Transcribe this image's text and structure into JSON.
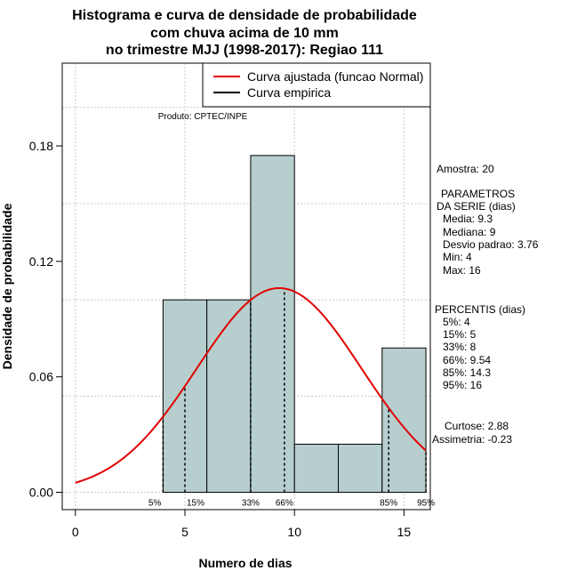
{
  "chart_data": {
    "type": "bar",
    "title_lines": [
      "Histograma e curva de densidade de probabilidade",
      "com chuva acima de 10 mm",
      "no trimestre MJJ (1998-2017): Regiao 111"
    ],
    "xlabel": "Numero de dias",
    "ylabel": "Densidade de probabilidade",
    "xlim": [
      -0.6,
      16.2
    ],
    "ylim": [
      -0.009,
      0.223
    ],
    "xticks": [
      0,
      5,
      10,
      15
    ],
    "yticks": [
      0.0,
      0.06,
      0.12,
      0.18
    ],
    "ytick_labels": [
      "0.00",
      "0.06",
      "0.12",
      "0.18"
    ],
    "grid": true,
    "bins": [
      {
        "x0": 4,
        "x1": 6,
        "density": 0.1
      },
      {
        "x0": 6,
        "x1": 8,
        "density": 0.1
      },
      {
        "x0": 8,
        "x1": 10,
        "density": 0.175
      },
      {
        "x0": 10,
        "x1": 12,
        "density": 0.025
      },
      {
        "x0": 12,
        "x1": 14,
        "density": 0.025
      },
      {
        "x0": 14,
        "x1": 16,
        "density": 0.075
      }
    ],
    "fitted_curve": {
      "name": "Curva ajustada (funcao Normal)",
      "mean": 9.3,
      "sd": 3.76,
      "x_from": 0,
      "x_to": 16,
      "color": "#e00000"
    },
    "empirical_curve": {
      "name": "Curva empirica",
      "color": "#000000"
    },
    "bar_color": "#b6cece",
    "percentile_lines": [
      {
        "label": "5%",
        "x": 4
      },
      {
        "label": "15%",
        "x": 5
      },
      {
        "label": "33%",
        "x": 8
      },
      {
        "label": "66%",
        "x": 9.54
      },
      {
        "label": "85%",
        "x": 14.3
      },
      {
        "label": "95%",
        "x": 16
      }
    ],
    "legend_position": "top-right",
    "annotation": "Produto: CPTEC/INPE"
  },
  "side_panel": {
    "sample": "Amostra: 20",
    "params_title_1": "PARAMETROS",
    "params_title_2": "DA SERIE (dias)",
    "params": [
      "Media: 9.3",
      "Mediana: 9",
      "Desvio padrao: 3.76",
      "Min: 4",
      "Max: 16"
    ],
    "percentis_title": "PERCENTIS (dias)",
    "percentis": [
      "5%: 4",
      "15%: 5",
      "33%: 8",
      "66%: 9.54",
      "85%: 14.3",
      "95%: 16"
    ],
    "curtose": "Curtose: 2.88",
    "assimetria": "Assimetria: -0.23"
  }
}
